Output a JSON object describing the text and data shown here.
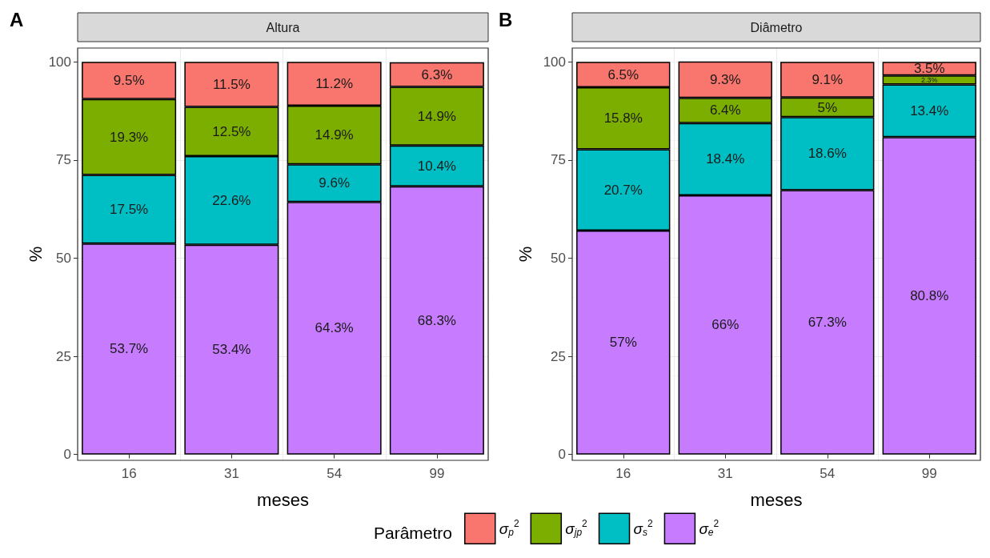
{
  "chart_data": [
    {
      "type": "bar",
      "stacked": true,
      "title": "Altura",
      "xlabel": "meses",
      "ylabel": "%",
      "legend_title": "Parâmetro",
      "legend": "bottom",
      "grid": true,
      "annotations": [
        "A"
      ],
      "categories": [
        "16",
        "31",
        "54",
        "99"
      ],
      "ylim": [
        -1.5,
        103.5
      ],
      "yticks": [
        0,
        25,
        50,
        75,
        100
      ],
      "series": [
        {
          "name": "σ$_{e}$$^{2}$",
          "color": "#c77cff",
          "values": [
            53.7,
            53.4,
            64.3,
            68.3
          ],
          "value_labels": [
            "53.7%",
            "53.4%",
            "64.3%",
            "68.3%"
          ]
        },
        {
          "name": "σ$_{s}$$^{2}$",
          "color": "#00bfc4",
          "values": [
            17.5,
            22.6,
            9.6,
            10.4
          ],
          "value_labels": [
            "17.5%",
            "22.6%",
            "9.6%",
            "10.4%"
          ]
        },
        {
          "name": "σ$_{jp}$$^{2}$",
          "color": "#7cae00",
          "values": [
            19.3,
            12.5,
            14.9,
            14.9
          ],
          "value_labels": [
            "19.3%",
            "12.5%",
            "14.9%",
            "14.9%"
          ]
        },
        {
          "name": "σ$_{p}$$^{2}$",
          "color": "#f8766d",
          "values": [
            9.5,
            11.5,
            11.2,
            6.3
          ],
          "value_labels": [
            "9.5%",
            "11.5%",
            "11.2%",
            "6.3%"
          ]
        }
      ]
    },
    {
      "type": "bar",
      "stacked": true,
      "title": "Diâmetro",
      "xlabel": "meses",
      "ylabel": "%",
      "grid": true,
      "annotations": [
        "B"
      ],
      "categories": [
        "16",
        "31",
        "54",
        "99"
      ],
      "ylim": [
        -1.5,
        103.5
      ],
      "yticks": [
        0,
        25,
        50,
        75,
        100
      ],
      "series": [
        {
          "color": "#c77cff",
          "values": [
            57,
            66,
            67.3,
            80.8
          ],
          "value_labels": [
            "57%",
            "66%",
            "67.3%",
            "80.8%"
          ]
        },
        {
          "color": "#00bfc4",
          "values": [
            20.7,
            18.4,
            18.6,
            13.4
          ],
          "value_labels": [
            "20.7%",
            "18.4%",
            "18.6%",
            "13.4%"
          ]
        },
        {
          "color": "#7cae00",
          "values": [
            15.8,
            6.4,
            5,
            2.3
          ],
          "value_labels": [
            "15.8%",
            "6.4%",
            "5%",
            "2.3%"
          ]
        },
        {
          "color": "#f8766d",
          "values": [
            6.5,
            9.3,
            9.1,
            3.5
          ],
          "value_labels": [
            "6.5%",
            "9.3%",
            "9.1%",
            "3.5%"
          ]
        }
      ]
    }
  ]
}
